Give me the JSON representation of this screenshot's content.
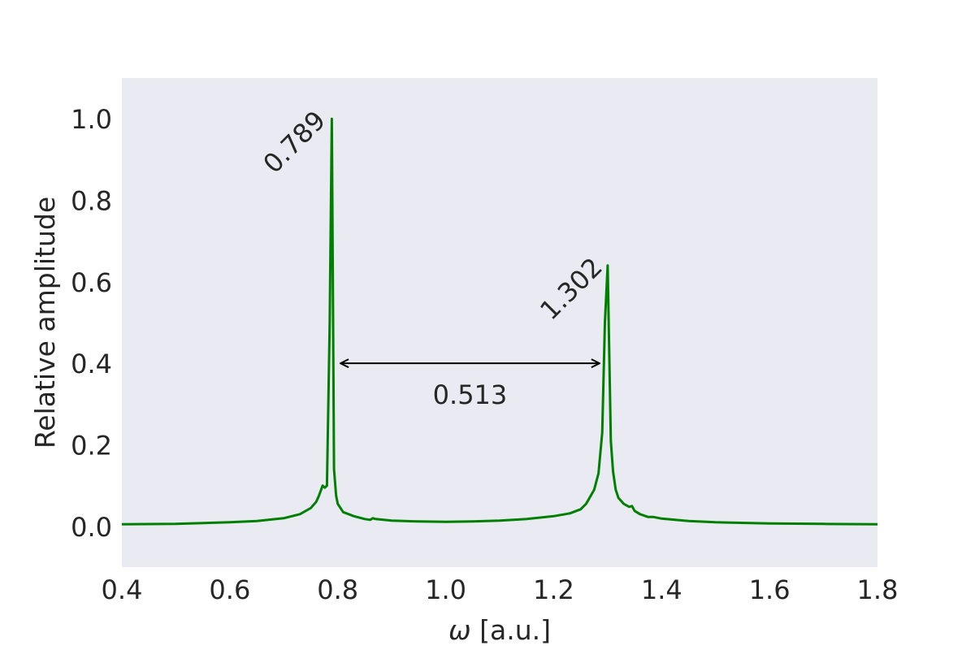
{
  "chart_data": {
    "type": "line",
    "xlabel_symbol": "ω",
    "xlabel_unit": " [a.u.]",
    "ylabel": "Relative amplitude",
    "xlim": [
      0.4,
      1.8
    ],
    "ylim": [
      -0.1,
      1.1
    ],
    "x_ticks": [
      "0.4",
      "0.6",
      "0.8",
      "1.0",
      "1.2",
      "1.4",
      "1.6",
      "1.8"
    ],
    "y_ticks": [
      "0.0",
      "0.2",
      "0.4",
      "0.6",
      "0.8",
      "1.0"
    ],
    "grid": false,
    "background": "#eaeaf2",
    "series": [
      {
        "color": "#008000",
        "x": [
          0.4,
          0.5,
          0.6,
          0.65,
          0.7,
          0.73,
          0.75,
          0.76,
          0.765,
          0.772,
          0.776,
          0.78,
          0.785,
          0.789,
          0.793,
          0.797,
          0.8,
          0.81,
          0.83,
          0.85,
          0.86,
          0.865,
          0.87,
          0.9,
          0.95,
          1.0,
          1.05,
          1.1,
          1.15,
          1.2,
          1.23,
          1.25,
          1.26,
          1.275,
          1.283,
          1.29,
          1.295,
          1.3,
          1.303,
          1.306,
          1.31,
          1.315,
          1.32,
          1.33,
          1.34,
          1.345,
          1.35,
          1.36,
          1.375,
          1.385,
          1.4,
          1.45,
          1.5,
          1.6,
          1.7,
          1.8
        ],
        "y": [
          0.005,
          0.006,
          0.01,
          0.013,
          0.02,
          0.03,
          0.045,
          0.06,
          0.075,
          0.1,
          0.095,
          0.1,
          0.5,
          1.0,
          0.14,
          0.075,
          0.055,
          0.035,
          0.025,
          0.018,
          0.016,
          0.02,
          0.018,
          0.014,
          0.012,
          0.011,
          0.012,
          0.014,
          0.018,
          0.025,
          0.032,
          0.042,
          0.055,
          0.09,
          0.13,
          0.23,
          0.5,
          0.64,
          0.42,
          0.21,
          0.135,
          0.09,
          0.07,
          0.055,
          0.048,
          0.05,
          0.038,
          0.03,
          0.023,
          0.023,
          0.019,
          0.013,
          0.01,
          0.007,
          0.006,
          0.005
        ]
      }
    ],
    "peak_labels": [
      {
        "x": 0.789,
        "y": 1.0,
        "text": "0.789"
      },
      {
        "x": 1.302,
        "y": 0.64,
        "text": "1.302"
      }
    ],
    "arrow": {
      "x_start": 0.805,
      "x_end": 1.285,
      "y": 0.4,
      "text": "0.513"
    }
  }
}
